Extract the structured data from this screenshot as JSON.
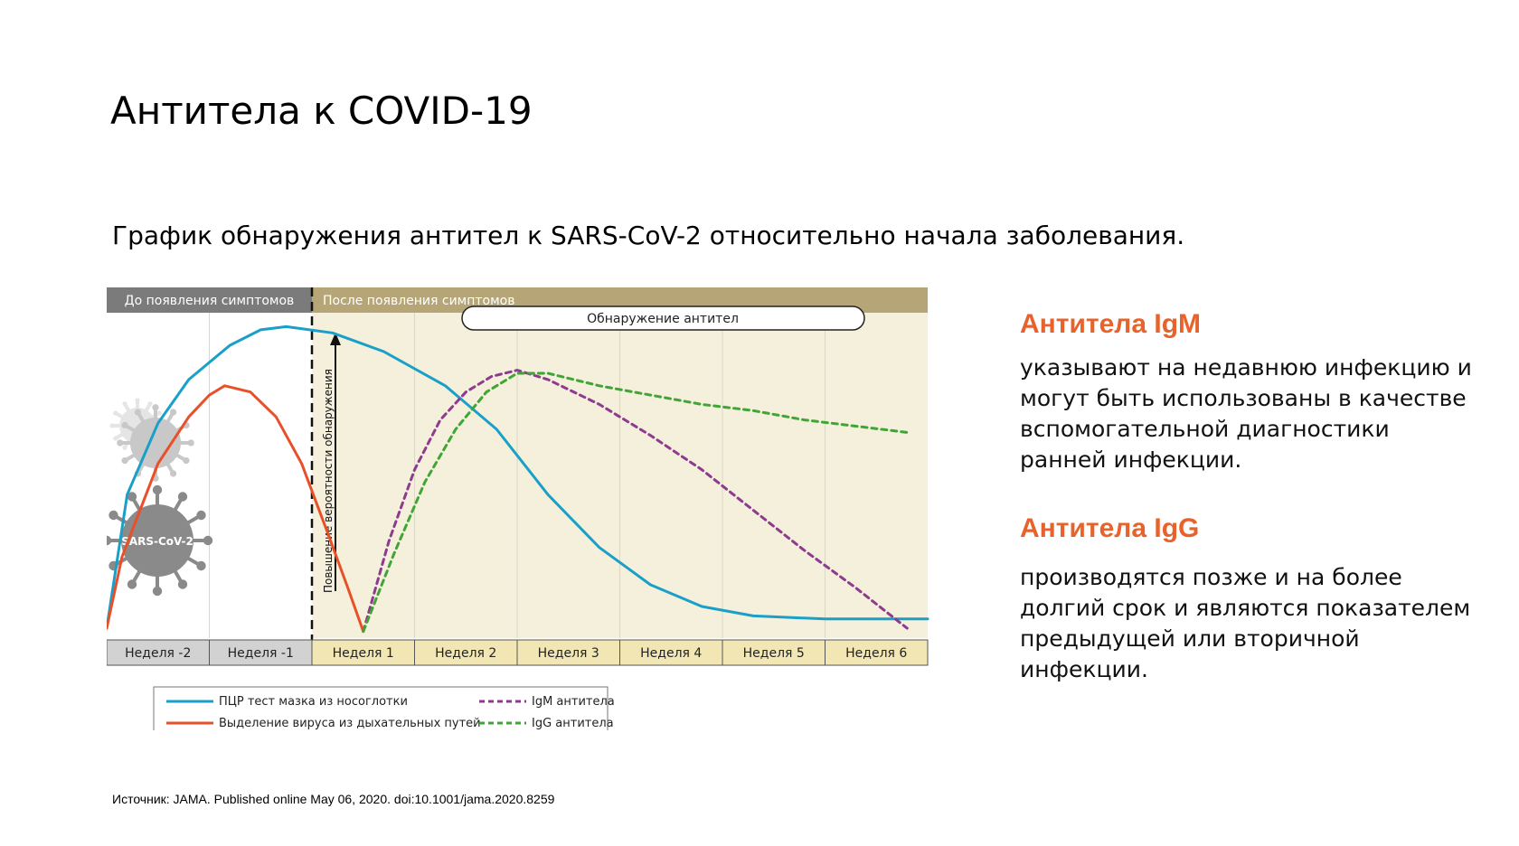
{
  "slide": {
    "title": "Антитела к COVID-19",
    "subtitle": "График обнаружения антител к SARS-CoV-2 относительно начала заболевания.",
    "source": "Источник: JAMA. Published online  May 06, 2020. doi:10.1001/jama.2020.8259"
  },
  "panels": {
    "igm": {
      "heading": "Антитела  IgM",
      "text": "указывают на недавнюю инфекцию и могут быть использованы в качестве вспомогательной диагностики ранней инфекции."
    },
    "igg": {
      "heading": "Антитела  IgG",
      "text": "производятся позже и на более долгий срок и являются показателем предыдущей или вторичной инфекции."
    }
  },
  "chart_data": {
    "type": "line",
    "phase_labels": {
      "before": "До появления симптомов",
      "after": "После появления симптомов"
    },
    "antibody_detection_label": "Обнаружение антител",
    "probability_label": "Повышение вероятности обнаружения",
    "virus_label": "SARS-CoV-2",
    "categories": [
      "Неделя -2",
      "Неделя -1",
      "Неделя 1",
      "Неделя 2",
      "Неделя 3",
      "Неделя 4",
      "Неделя 5",
      "Неделя 6"
    ],
    "x_range": [
      -2,
      6
    ],
    "y_range": [
      0,
      100
    ],
    "grid": true,
    "legend_position": "bottom-left",
    "series": [
      {
        "name": "ПЦР тест мазка из носоглотки",
        "color": "#1aa0c8",
        "dash": false,
        "points": [
          [
            -2,
            2
          ],
          [
            -1.8,
            45
          ],
          [
            -1.5,
            68
          ],
          [
            -1.2,
            82
          ],
          [
            -0.8,
            93
          ],
          [
            -0.5,
            98
          ],
          [
            -0.25,
            99
          ],
          [
            0.2,
            97
          ],
          [
            0.7,
            91
          ],
          [
            1.3,
            80
          ],
          [
            1.8,
            66
          ],
          [
            2.3,
            45
          ],
          [
            2.8,
            28
          ],
          [
            3.3,
            16
          ],
          [
            3.8,
            9
          ],
          [
            4.3,
            6
          ],
          [
            5,
            5
          ],
          [
            6,
            5
          ]
        ]
      },
      {
        "name": "Выделение вируса из дыхательных путей",
        "color": "#e8502a",
        "dash": false,
        "points": [
          [
            -2,
            2
          ],
          [
            -1.85,
            25
          ],
          [
            -1.5,
            55
          ],
          [
            -1.2,
            70
          ],
          [
            -1,
            77
          ],
          [
            -0.85,
            80
          ],
          [
            -0.6,
            78
          ],
          [
            -0.35,
            70
          ],
          [
            -0.1,
            55
          ],
          [
            0.15,
            33
          ],
          [
            0.35,
            15
          ],
          [
            0.5,
            1
          ]
        ]
      },
      {
        "name": "IgM антитела",
        "color": "#8e3a8e",
        "dash": true,
        "points": [
          [
            0.5,
            1
          ],
          [
            0.75,
            30
          ],
          [
            1,
            53
          ],
          [
            1.25,
            69
          ],
          [
            1.5,
            78
          ],
          [
            1.75,
            83
          ],
          [
            2,
            85
          ],
          [
            2.3,
            82
          ],
          [
            2.8,
            74
          ],
          [
            3.3,
            64
          ],
          [
            3.8,
            53
          ],
          [
            4.3,
            40
          ],
          [
            4.8,
            27
          ],
          [
            5.3,
            15
          ],
          [
            5.8,
            2
          ]
        ]
      },
      {
        "name": "IgG антитела",
        "color": "#3fa535",
        "dash": true,
        "points": [
          [
            0.5,
            1
          ],
          [
            0.8,
            26
          ],
          [
            1.1,
            49
          ],
          [
            1.4,
            66
          ],
          [
            1.7,
            78
          ],
          [
            2,
            84
          ],
          [
            2.3,
            84
          ],
          [
            2.8,
            80
          ],
          [
            3.3,
            77
          ],
          [
            3.8,
            74
          ],
          [
            4.3,
            72
          ],
          [
            4.8,
            69
          ],
          [
            5.3,
            67
          ],
          [
            5.8,
            65
          ]
        ]
      }
    ]
  }
}
